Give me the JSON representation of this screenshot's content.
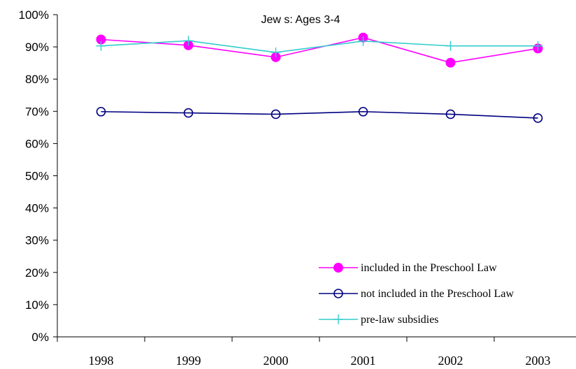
{
  "chart_data": {
    "type": "line",
    "title": "Jew s: Ages 3-4",
    "categories": [
      "1998",
      "1999",
      "2000",
      "2001",
      "2002",
      "2003"
    ],
    "y_tick_labels": [
      "0%",
      "10%",
      "20%",
      "30%",
      "40%",
      "50%",
      "60%",
      "70%",
      "80%",
      "90%",
      "100%"
    ],
    "ylim": [
      0,
      100
    ],
    "grid": false,
    "legend_position": "bottom-right",
    "series": [
      {
        "name": "included in the Preschool Law",
        "values": [
          92.3,
          90.5,
          86.8,
          92.9,
          85.1,
          89.5
        ],
        "color": "#FF00FF",
        "marker": "filled-circle"
      },
      {
        "name": "not included in the Preschool Law",
        "values": [
          69.9,
          69.5,
          69.1,
          69.9,
          69.1,
          67.9
        ],
        "color": "#000080",
        "marker": "open-circle"
      },
      {
        "name": "pre-law subsidies",
        "values": [
          90.3,
          91.9,
          88.3,
          91.8,
          90.3,
          90.3
        ],
        "color": "#33CCCC",
        "marker": "plus"
      }
    ]
  }
}
